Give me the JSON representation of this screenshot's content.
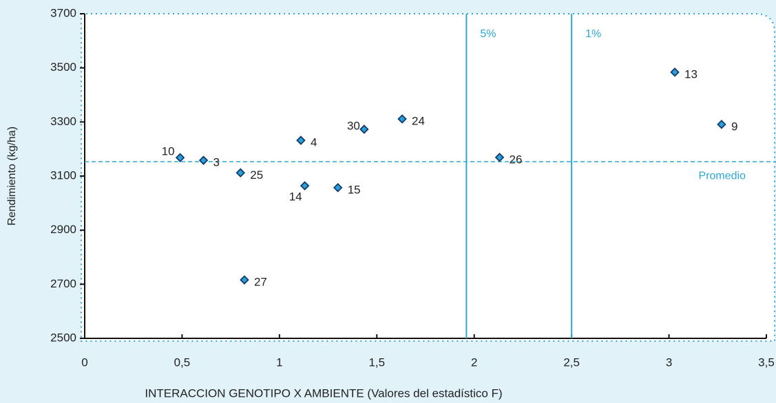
{
  "chart_data": {
    "type": "scatter",
    "x_label": "INTERACCION GENOTIPO X AMBIENTE (Valores del estadístico F)",
    "y_label": "Rendimiento (kg/ha)",
    "series": [
      {
        "color": "#2a9fd8",
        "labels": [
          "10",
          "3",
          "25",
          "27",
          "4",
          "14",
          "15",
          "30",
          "24",
          "26",
          "13",
          "9"
        ],
        "x": [
          0.49,
          0.61,
          0.8,
          0.82,
          1.11,
          1.13,
          1.3,
          1.435,
          1.63,
          2.13,
          3.03,
          3.27
        ],
        "values": [
          3168,
          3158,
          3112,
          2716,
          3232,
          3064,
          3057,
          3273,
          3311,
          3169,
          3484,
          3291
        ]
      }
    ],
    "xlim": [
      0,
      3.5
    ],
    "xticks": [
      0,
      {
        "value": 0.5,
        "label": "0,5"
      },
      1,
      {
        "value": 1.5,
        "label": "1,5"
      },
      2,
      {
        "value": 2.5,
        "label": "2,5"
      },
      3,
      {
        "value": 3.5,
        "label": "3,5"
      }
    ],
    "ylim": [
      2500,
      3700
    ],
    "yticks": [
      2500,
      2700,
      2900,
      3100,
      3300,
      3500,
      3700
    ],
    "vlines": [
      {
        "value": 1.96,
        "label": "5%"
      },
      {
        "value": 2.5,
        "label": "1%"
      }
    ],
    "hlines": [
      {
        "value": 3153,
        "label": "Promedio"
      }
    ],
    "ref_color": "#2ba8d6"
  }
}
